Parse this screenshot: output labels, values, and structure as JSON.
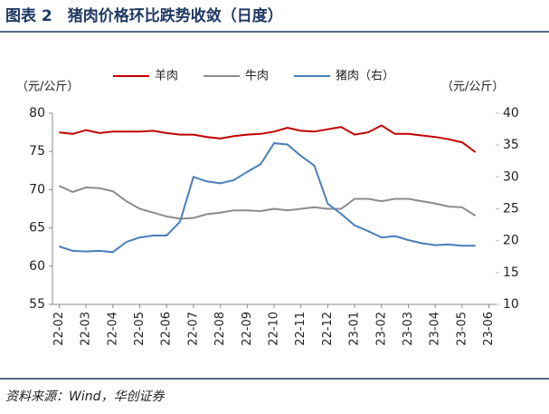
{
  "header": {
    "title": "图表 2　猪肉价格环比跌势收敛（日度）"
  },
  "chart_data": {
    "type": "line",
    "y_label": "（元/公斤）",
    "y2_label": "（元/公斤）",
    "categories": [
      "22-02",
      null,
      "22-03",
      null,
      "22-04",
      null,
      "22-05",
      null,
      "22-06",
      null,
      "22-07",
      null,
      "22-08",
      null,
      "22-09",
      null,
      "22-10",
      null,
      "22-11",
      null,
      "22-12",
      null,
      "23-01",
      null,
      "23-02",
      null,
      "23-03",
      null,
      "23-04",
      null,
      "23-05",
      null,
      "23-06"
    ],
    "series": [
      {
        "name": "羊肉",
        "color": "#c00000",
        "values": [
          77.5,
          77.3,
          77.8,
          77.4,
          77.6,
          77.6,
          77.6,
          77.7,
          77.4,
          77.2,
          77.2,
          76.9,
          76.7,
          77.0,
          77.2,
          77.3,
          77.6,
          78.1,
          77.7,
          77.6,
          77.9,
          78.2,
          77.2,
          77.5,
          78.4,
          77.3,
          77.3,
          77.1,
          76.9,
          76.6,
          76.2,
          74.9,
          null
        ]
      },
      {
        "name": "牛肉",
        "color": "#8c8c8c",
        "values": [
          70.5,
          69.7,
          70.3,
          70.2,
          69.8,
          68.5,
          67.5,
          67.0,
          66.5,
          66.2,
          66.3,
          66.8,
          67.0,
          67.3,
          67.3,
          67.2,
          67.5,
          67.3,
          67.5,
          67.7,
          67.5,
          67.5,
          68.8,
          68.8,
          68.5,
          68.8,
          68.8,
          68.5,
          68.2,
          67.8,
          67.7,
          66.6,
          null
        ]
      },
      {
        "name": "猪肉（右）",
        "color": "#4a7ebb",
        "axis": "y2",
        "values": [
          19.1,
          18.4,
          18.3,
          18.4,
          18.2,
          19.8,
          20.5,
          20.8,
          20.8,
          23.0,
          30.0,
          29.3,
          29.0,
          29.5,
          30.8,
          32.0,
          35.3,
          35.1,
          33.3,
          31.8,
          25.8,
          24.2,
          22.4,
          21.5,
          20.5,
          20.7,
          20.1,
          19.6,
          19.3,
          19.4,
          19.2,
          19.2,
          null
        ]
      }
    ],
    "ylim": [
      55,
      80
    ],
    "yticks": [
      55,
      60,
      65,
      70,
      75,
      80
    ],
    "y2lim": [
      10,
      40
    ],
    "y2ticks": [
      10,
      15,
      20,
      25,
      30,
      35,
      40
    ],
    "legend": "top"
  },
  "footer": {
    "source": "资料来源：Wind，华创证券"
  }
}
